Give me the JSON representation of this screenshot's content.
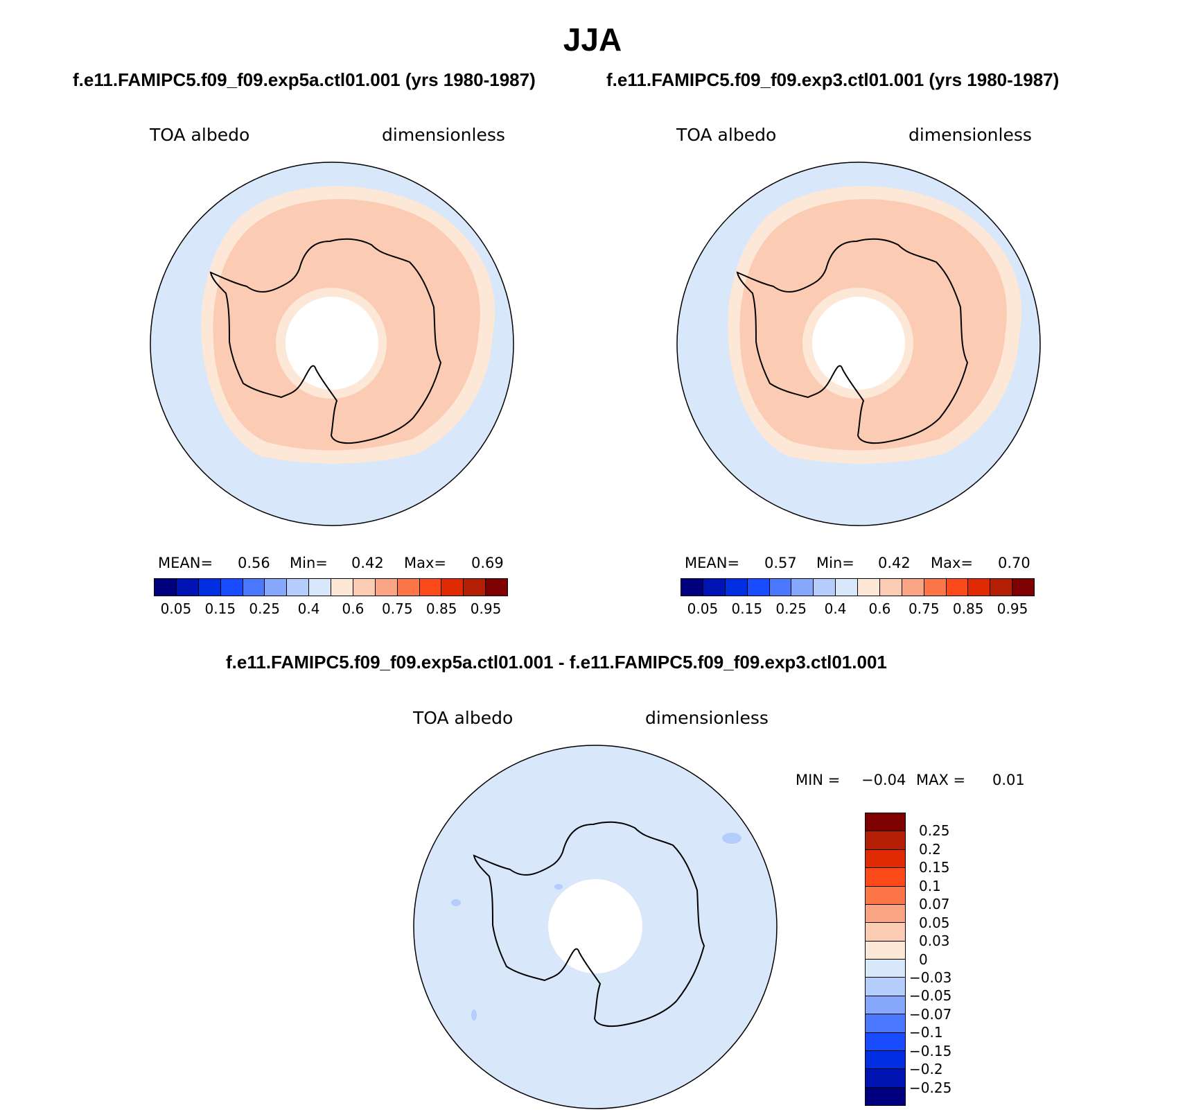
{
  "figure": {
    "title": "JJA",
    "panels": [
      {
        "case": "f.e11.FAMIPC5.f09_f09.exp5a.ctl01.001 (yrs 1980-1987)",
        "variable": "TOA albedo",
        "units": "dimensionless",
        "stats": {
          "mean_label": "MEAN=",
          "mean": "0.56",
          "min_label": "Min=",
          "min": "0.42",
          "max_label": "Max=",
          "max": "0.69"
        }
      },
      {
        "case": "f.e11.FAMIPC5.f09_f09.exp3.ctl01.001 (yrs 1980-1987)",
        "variable": "TOA albedo",
        "units": "dimensionless",
        "stats": {
          "mean_label": "MEAN=",
          "mean": "0.57",
          "min_label": "Min=",
          "min": "0.42",
          "max_label": "Max=",
          "max": "0.70"
        }
      }
    ],
    "difference": {
      "title": "f.e11.FAMIPC5.f09_f09.exp5a.ctl01.001 - f.e11.FAMIPC5.f09_f09.exp3.ctl01.001",
      "variable": "TOA albedo",
      "units": "dimensionless",
      "stats": {
        "min_label": "MIN =",
        "min": "−0.04",
        "max_label": "MAX =",
        "max": "0.01"
      }
    }
  },
  "chart_data": [
    {
      "type": "heatmap",
      "projection": "south polar stereographic",
      "title": "f.e11.FAMIPC5.f09_f09.exp5a.ctl01.001 (yrs 1980-1987)",
      "variable": "TOA albedo",
      "units": "dimensionless",
      "mean": 0.56,
      "min": 0.42,
      "max": 0.69,
      "levels": [
        "0.05",
        "0.15",
        "0.25",
        "0.4",
        "0.6",
        "0.75",
        "0.85",
        "0.95"
      ],
      "colors": [
        "#00007f",
        "#0014b3",
        "#002ee0",
        "#1a4cff",
        "#4a78ff",
        "#85a7fc",
        "#b5cdfa",
        "#d8e7fa",
        "#fde8d7",
        "#fbcbb3",
        "#f9a584",
        "#fc7648",
        "#fc4a1a",
        "#e02a04",
        "#b31e04",
        "#7f0000"
      ]
    },
    {
      "type": "heatmap",
      "projection": "south polar stereographic",
      "title": "f.e11.FAMIPC5.f09_f09.exp3.ctl01.001 (yrs 1980-1987)",
      "variable": "TOA albedo",
      "units": "dimensionless",
      "mean": 0.57,
      "min": 0.42,
      "max": 0.7,
      "levels": [
        "0.05",
        "0.15",
        "0.25",
        "0.4",
        "0.6",
        "0.75",
        "0.85",
        "0.95"
      ],
      "colors": [
        "#00007f",
        "#0014b3",
        "#002ee0",
        "#1a4cff",
        "#4a78ff",
        "#85a7fc",
        "#b5cdfa",
        "#d8e7fa",
        "#fde8d7",
        "#fbcbb3",
        "#f9a584",
        "#fc7648",
        "#fc4a1a",
        "#e02a04",
        "#b31e04",
        "#7f0000"
      ]
    },
    {
      "type": "heatmap",
      "projection": "south polar stereographic",
      "title": "f.e11.FAMIPC5.f09_f09.exp5a.ctl01.001 - f.e11.FAMIPC5.f09_f09.exp3.ctl01.001",
      "variable": "TOA albedo",
      "units": "dimensionless",
      "min": -0.04,
      "max": 0.01,
      "levels": [
        "0.25",
        "0.2",
        "0.15",
        "0.1",
        "0.07",
        "0.05",
        "0.03",
        "0",
        "−0.03",
        "−0.05",
        "−0.07",
        "−0.1",
        "−0.15",
        "−0.2",
        "−0.25"
      ],
      "colors": [
        "#7f0000",
        "#b31e04",
        "#e02a04",
        "#fc4a1a",
        "#fc7648",
        "#f9a584",
        "#fbcbb3",
        "#fde8d7",
        "#d8e7fa",
        "#b5cdfa",
        "#85a7fc",
        "#4a78ff",
        "#1a4cff",
        "#002ee0",
        "#0014b3",
        "#00007f"
      ]
    }
  ]
}
